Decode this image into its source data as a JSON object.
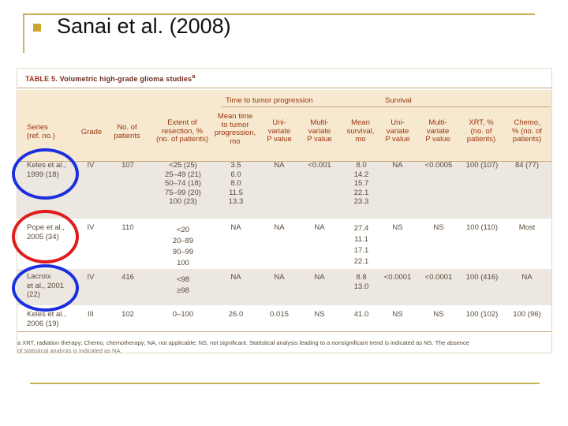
{
  "slide": {
    "title": "Sanai et al. (2008)",
    "accent_color": "#c9b458",
    "bullet_icon": "square-bullet-icon"
  },
  "table": {
    "label": "TABLE 5.",
    "caption": "Volumetric high-grade glioma studies",
    "caption_sup": "a",
    "group_headers": {
      "progression": "Time to tumor progression",
      "survival": "Survival"
    },
    "columns": {
      "series": [
        "Series",
        "(ref. no.)"
      ],
      "grade": [
        "Grade"
      ],
      "patients": [
        "No. of",
        "patients"
      ],
      "resection": [
        "Extent of",
        "resection, %",
        "(no. of patients)"
      ],
      "mean_ttp": [
        "Mean time",
        "to tumor",
        "progression,",
        "mo"
      ],
      "uni_p1": [
        "Uni-",
        "variate",
        "P value"
      ],
      "multi_p1": [
        "Multi-",
        "variate",
        "P value"
      ],
      "mean_survival": [
        "Mean",
        "survival,",
        "mo"
      ],
      "uni_p2": [
        "Uni-",
        "variate",
        "P value"
      ],
      "multi_p2": [
        "Multi-",
        "variate",
        "P value"
      ],
      "xrt": [
        "XRT, %",
        "(no. of",
        "patients)"
      ],
      "chemo": [
        "Chemo,",
        "% (no. of",
        "patients)"
      ]
    },
    "rows": [
      {
        "series": [
          "Keles et al.,",
          "1999 (18)"
        ],
        "grade": "IV",
        "patients": "107",
        "resection": [
          "<25 (25)",
          "25–49 (21)",
          "50–74 (18)",
          "75–99 (20)",
          "100 (23)"
        ],
        "mean_ttp": [
          "3.5",
          "6.0",
          "8.0",
          "11.5",
          "13.3"
        ],
        "uni_p1": "NA",
        "multi_p1": "<0.001",
        "mean_survival": [
          "8.0",
          "14.2",
          "15.7",
          "22.1",
          "23.3"
        ],
        "uni_p2": "NA",
        "multi_p2": "<0.0005",
        "xrt": "100 (107)",
        "chemo": "84 (77)"
      },
      {
        "series": [
          "Pope et al.,",
          "2005 (34)"
        ],
        "grade": "IV",
        "patients": "110",
        "resection": [
          "<20",
          "20–89",
          "90–99",
          "100"
        ],
        "mean_ttp": [
          "NA"
        ],
        "uni_p1": "NA",
        "multi_p1": "NA",
        "mean_survival": [
          "27.4",
          "11.1",
          "17.1",
          "22.1"
        ],
        "uni_p2": "NS",
        "multi_p2": "NS",
        "xrt": "100 (110)",
        "chemo": "Most"
      },
      {
        "series": [
          "Lacroix",
          "et al., 2001",
          "(22)"
        ],
        "grade": "IV",
        "patients": "416",
        "resection": [
          "<98",
          "≥98"
        ],
        "mean_ttp": [
          "NA"
        ],
        "uni_p1": "NA",
        "multi_p1": "NA",
        "mean_survival": [
          "8.8",
          "13.0"
        ],
        "uni_p2": "<0.0001",
        "multi_p2": "<0.0001",
        "xrt": "100 (416)",
        "chemo": "NA"
      },
      {
        "series": [
          "Keles et al.,",
          "2006 (19)"
        ],
        "grade": "III",
        "patients": "102",
        "resection": [
          "0–100"
        ],
        "mean_ttp": [
          "26.0"
        ],
        "uni_p1": "0.015",
        "multi_p1": "NS",
        "mean_survival": [
          "41.0"
        ],
        "uni_p2": "NS",
        "multi_p2": "NS",
        "xrt": "100 (102)",
        "chemo": "100 (96)"
      }
    ],
    "footnote": "a XRT, radiation therapy; Chemo, chemotherapy; NA, not applicable; NS, not significant. Statistical analysis leading to a nonsignificant trend is indicated as NS. The absence",
    "footnote_cont": "of statistical analysis is indicated as NA."
  },
  "annotations": {
    "blue_color": "#1c2fe0",
    "red_color": "#e01c1c"
  }
}
